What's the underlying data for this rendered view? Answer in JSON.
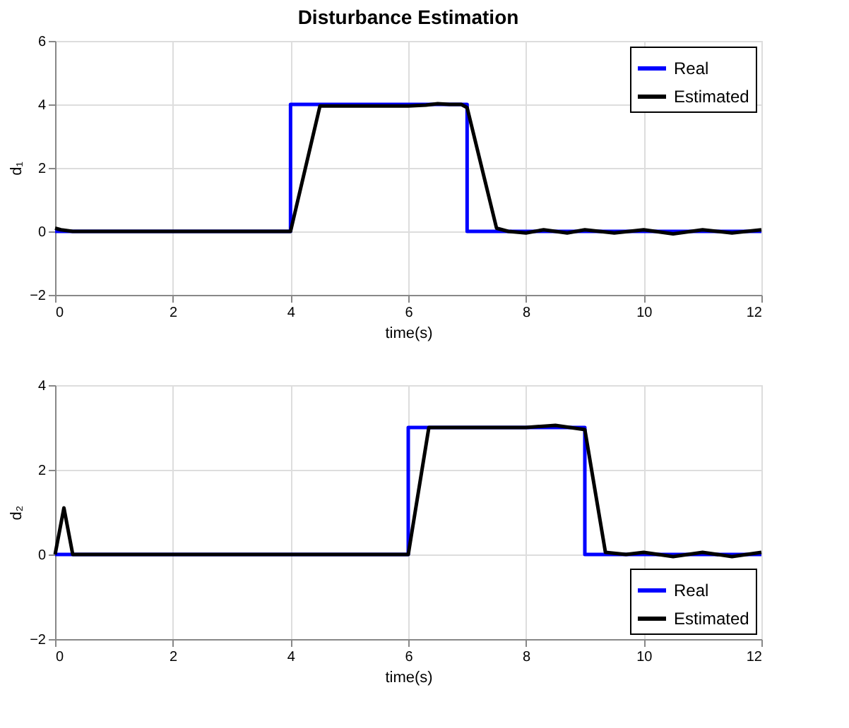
{
  "chart_data": [
    {
      "type": "line",
      "title": "Disturbance Estimation",
      "xlabel": "time(s)",
      "ylabel": "d₁",
      "xlim": [
        0,
        12
      ],
      "ylim": [
        -2,
        6
      ],
      "xticks": [
        0,
        2,
        4,
        6,
        8,
        10,
        12
      ],
      "yticks": [
        -2,
        0,
        2,
        4,
        6
      ],
      "grid": true,
      "legend": "top right",
      "line_style": "solid",
      "series": [
        {
          "name": "Real",
          "color": "#0000ff",
          "x": [
            0,
            4,
            4,
            7,
            7,
            12
          ],
          "values": [
            0,
            0,
            4,
            4,
            0,
            0
          ]
        },
        {
          "name": "Estimated",
          "color": "#000000",
          "x": [
            0,
            0.1,
            0.3,
            4,
            4.5,
            5,
            6,
            6.3,
            6.5,
            6.7,
            6.9,
            7,
            7.5,
            7.7,
            8,
            8.3,
            8.7,
            9,
            9.5,
            10,
            10.5,
            11,
            11.5,
            12
          ],
          "values": [
            0.1,
            0.05,
            0,
            0,
            3.95,
            3.95,
            3.95,
            3.98,
            4.02,
            4,
            4,
            3.9,
            0.1,
            0,
            -0.05,
            0.05,
            -0.05,
            0.05,
            -0.05,
            0.05,
            -0.08,
            0.05,
            -0.05,
            0.05
          ]
        }
      ]
    },
    {
      "type": "line",
      "xlabel": "time(s)",
      "ylabel": "d₂",
      "xlim": [
        0,
        12
      ],
      "ylim": [
        -2,
        4
      ],
      "xticks": [
        0,
        2,
        4,
        6,
        8,
        10,
        12
      ],
      "yticks": [
        -2,
        0,
        2,
        4
      ],
      "grid": true,
      "legend": "bottom right",
      "line_style": "solid",
      "series": [
        {
          "name": "Real",
          "color": "#0000ff",
          "x": [
            0,
            6,
            6,
            9,
            9,
            12
          ],
          "values": [
            0,
            0,
            3,
            3,
            0,
            0
          ]
        },
        {
          "name": "Estimated",
          "color": "#000000",
          "x": [
            0,
            0.15,
            0.3,
            6,
            6.35,
            7,
            8,
            8.5,
            9,
            9.35,
            9.7,
            10,
            10.5,
            11,
            11.5,
            12
          ],
          "values": [
            0,
            1.1,
            0,
            0,
            3,
            3,
            3,
            3.05,
            2.95,
            0.05,
            0,
            0.05,
            -0.05,
            0.05,
            -0.05,
            0.05
          ]
        }
      ]
    }
  ]
}
